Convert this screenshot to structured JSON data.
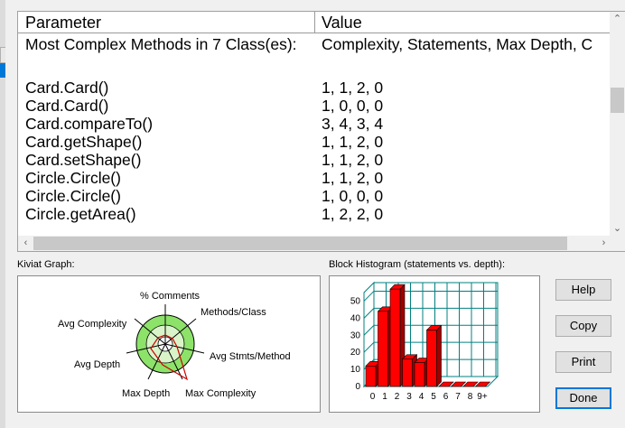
{
  "table": {
    "col_param": "Parameter",
    "col_value": "Value",
    "rows": [
      {
        "param": "Most Complex Methods in 7 Class(es):",
        "value": "Complexity, Statements, Max Depth, C"
      },
      {
        "param": "",
        "value": ""
      },
      {
        "param": "Card.Card()",
        "value": "1, 1, 2, 0"
      },
      {
        "param": "Card.Card()",
        "value": "1, 0, 0, 0"
      },
      {
        "param": "Card.compareTo()",
        "value": "3, 4, 3, 4"
      },
      {
        "param": "Card.getShape()",
        "value": "1, 1, 2, 0"
      },
      {
        "param": "Card.setShape()",
        "value": "1, 1, 2, 0"
      },
      {
        "param": "Circle.Circle()",
        "value": "1, 1, 2, 0"
      },
      {
        "param": "Circle.Circle()",
        "value": "1, 0, 0, 0"
      },
      {
        "param": "Circle.getArea()",
        "value": "1, 2, 2, 0"
      }
    ]
  },
  "scroll_icons": {
    "up": "chevron-up-icon",
    "down": "chevron-down-icon",
    "left": "chevron-left-icon",
    "right": "chevron-right-icon"
  },
  "kiviat": {
    "title": "Kiviat Graph:",
    "labels": {
      "comments": "% Comments",
      "methods_class": "Methods/Class",
      "avg_stmts": "Avg Stmts/Method",
      "max_complexity": "Max Complexity",
      "max_depth": "Max Depth",
      "avg_depth": "Avg Depth",
      "avg_complexity": "Avg Complexity"
    },
    "colors": {
      "outer_ring": "#8de26a",
      "inner_ring": "#d8f4c8",
      "spokes": "#000000",
      "profile": "#cc0000"
    }
  },
  "histogram": {
    "title": "Block Histogram (statements vs. depth):",
    "colors": {
      "bar": "#ff0000",
      "grid": "#008080",
      "side": "#a00000"
    }
  },
  "chart_data": {
    "type": "bar",
    "title": "Block Histogram (statements vs. depth):",
    "categories": [
      "0",
      "1",
      "2",
      "3",
      "4",
      "5",
      "6",
      "7",
      "8",
      "9+"
    ],
    "values": [
      12,
      44,
      57,
      16,
      14,
      33,
      0,
      0,
      0,
      0
    ],
    "y_ticks": [
      "0",
      "10",
      "20",
      "30",
      "40",
      "50"
    ],
    "ylim": [
      0,
      55
    ],
    "xlabel": "",
    "ylabel": "",
    "grid": true
  },
  "buttons": {
    "help": "Help",
    "copy": "Copy",
    "print": "Print",
    "done": "Done"
  }
}
